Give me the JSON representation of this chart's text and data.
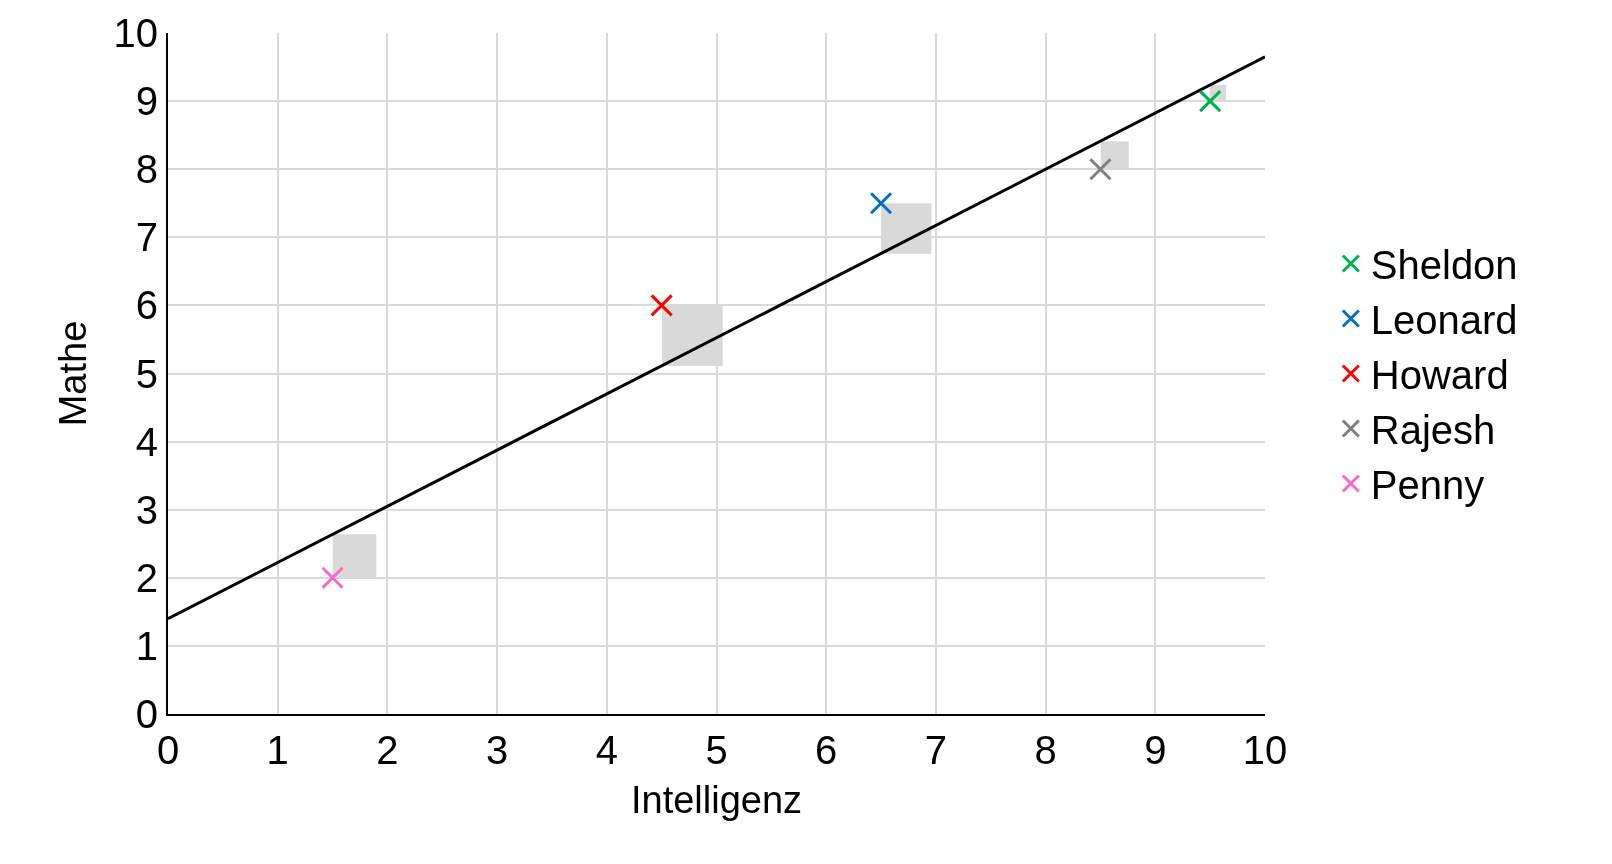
{
  "chart_data": {
    "type": "scatter",
    "xlabel": "Intelligenz",
    "ylabel": "Mathe",
    "xlim": [
      0,
      10
    ],
    "ylim": [
      0,
      10
    ],
    "xticks": [
      0,
      1,
      2,
      3,
      4,
      5,
      6,
      7,
      8,
      9,
      10
    ],
    "yticks": [
      0,
      1,
      2,
      3,
      4,
      5,
      6,
      7,
      8,
      9,
      10
    ],
    "grid": true,
    "legend": "right",
    "marker": "cross",
    "series": [
      {
        "type": "bar",
        "color": "#d9d9d9",
        "x": [
          1.7,
          4.78,
          6.73,
          8.63,
          9.57
        ],
        "base": [
          2,
          5.11,
          6.76,
          8,
          9
        ],
        "values": [
          0.64,
          0.89,
          0.74,
          0.41,
          0.24
        ]
      },
      {
        "type": "line",
        "color": "#000000",
        "marker": "none",
        "x": [
          0,
          10
        ],
        "values": [
          1.4,
          9.65
        ]
      },
      {
        "name": "Sheldon",
        "color": "#00b050",
        "x": [
          9.5
        ],
        "values": [
          9
        ]
      },
      {
        "name": "Leonard",
        "color": "#0070c0",
        "x": [
          6.5
        ],
        "values": [
          7.5
        ]
      },
      {
        "name": "Howard",
        "color": "#ff0000",
        "x": [
          4.5
        ],
        "values": [
          6
        ]
      },
      {
        "name": "Rajesh",
        "color": "#808080",
        "x": [
          8.5
        ],
        "values": [
          8
        ]
      },
      {
        "name": "Penny",
        "color": "#ff66cc",
        "x": [
          1.5
        ],
        "values": [
          2
        ]
      }
    ]
  }
}
